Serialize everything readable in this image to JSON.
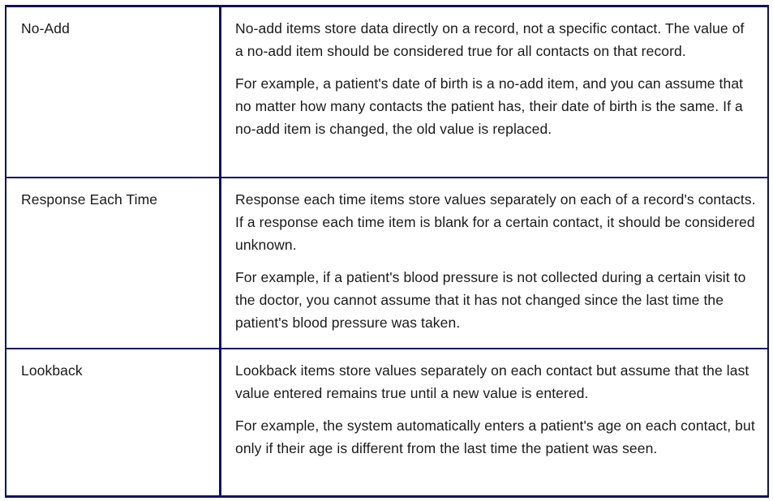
{
  "rows": [
    {
      "term": "No-Add",
      "paragraphs": [
        "No-add items store data directly on a record, not a specific contact. The value of a no-add item should be considered true for all contacts on that record.",
        "For example, a patient's date of birth is a no-add item, and you can assume that no matter how many contacts the patient has, their date of birth is the same. If a no-add item is changed, the old value is replaced."
      ]
    },
    {
      "term": "Response Each Time",
      "paragraphs": [
        "Response each time items store values separately on each of a record's contacts. If a response each time item is blank for a certain contact, it should be considered unknown.",
        "For example, if a patient's blood pressure is not collected during a certain visit to the doctor, you cannot assume that it has not changed since the last time the patient's blood pressure was taken."
      ]
    },
    {
      "term": "Lookback",
      "paragraphs": [
        "Lookback items store values separately on each contact but assume that the last value entered remains true until a new value is entered.",
        "For example, the system automatically enters a patient's age on each contact, but only if their age is different from the last time the patient was seen."
      ]
    }
  ]
}
